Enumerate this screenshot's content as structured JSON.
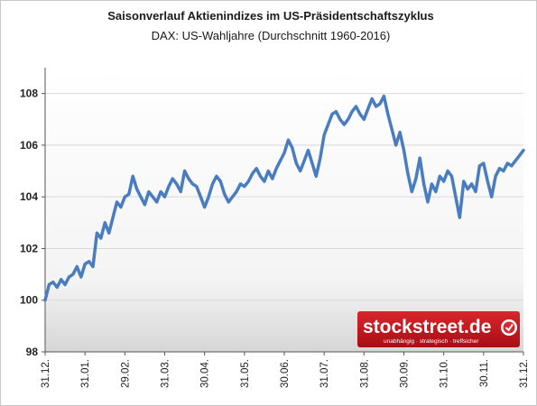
{
  "chart_data": {
    "type": "line",
    "title": "Saisonverlauf Aktienindizes im US-Präsidentschaftszyklus",
    "subtitle": "DAX: US-Wahljahre (Durchschnitt 1960-2016)",
    "xlabel": "",
    "ylabel": "",
    "ylim": [
      98,
      109
    ],
    "yticks": [
      98,
      100,
      102,
      104,
      106,
      108
    ],
    "grid": true,
    "xtick_labels": [
      "31.12.",
      "31.01.",
      "29.02.",
      "31.03.",
      "30.04.",
      "31.05.",
      "30.06.",
      "31.07.",
      "31.08.",
      "30.09.",
      "31.10.",
      "30.11.",
      "31.12."
    ],
    "series_color": "#4a7dbf",
    "series": [
      {
        "name": "",
        "x": [
          0,
          0.1,
          0.2,
          0.3,
          0.4,
          0.5,
          0.6,
          0.7,
          0.8,
          0.9,
          1.0,
          1.1,
          1.2,
          1.3,
          1.4,
          1.5,
          1.6,
          1.7,
          1.8,
          1.9,
          2.0,
          2.1,
          2.2,
          2.3,
          2.4,
          2.5,
          2.6,
          2.7,
          2.8,
          2.9,
          3.0,
          3.1,
          3.2,
          3.3,
          3.4,
          3.5,
          3.6,
          3.7,
          3.8,
          3.9,
          4.0,
          4.1,
          4.2,
          4.3,
          4.4,
          4.5,
          4.6,
          4.7,
          4.8,
          4.9,
          5.0,
          5.1,
          5.2,
          5.3,
          5.4,
          5.5,
          5.6,
          5.7,
          5.8,
          5.9,
          6.0,
          6.1,
          6.2,
          6.3,
          6.4,
          6.5,
          6.6,
          6.7,
          6.8,
          6.9,
          7.0,
          7.1,
          7.2,
          7.3,
          7.4,
          7.5,
          7.6,
          7.7,
          7.8,
          7.9,
          8.0,
          8.1,
          8.2,
          8.3,
          8.4,
          8.5,
          8.6,
          8.7,
          8.8,
          8.9,
          9.0,
          9.1,
          9.2,
          9.3,
          9.4,
          9.5,
          9.6,
          9.7,
          9.8,
          9.9,
          10.0,
          10.1,
          10.2,
          10.3,
          10.4,
          10.5,
          10.6,
          10.7,
          10.8,
          10.9,
          11.0,
          11.1,
          11.2,
          11.3,
          11.4,
          11.5,
          11.6,
          11.7,
          11.8,
          11.9,
          12.0
        ],
        "values": [
          100.0,
          100.6,
          100.7,
          100.5,
          100.8,
          100.6,
          100.9,
          101.0,
          101.3,
          100.9,
          101.4,
          101.5,
          101.3,
          102.6,
          102.4,
          103.0,
          102.6,
          103.2,
          103.8,
          103.6,
          104.0,
          104.1,
          104.8,
          104.3,
          104.0,
          103.7,
          104.2,
          104.0,
          103.8,
          104.2,
          104.0,
          104.4,
          104.7,
          104.5,
          104.2,
          105.0,
          104.7,
          104.5,
          104.4,
          104.0,
          103.6,
          104.0,
          104.5,
          104.8,
          104.6,
          104.1,
          103.8,
          104.0,
          104.2,
          104.5,
          104.4,
          104.6,
          104.9,
          105.1,
          104.8,
          104.6,
          105.0,
          104.7,
          105.1,
          105.4,
          105.7,
          106.2,
          105.9,
          105.3,
          105.0,
          105.4,
          105.8,
          105.3,
          104.8,
          105.5,
          106.4,
          106.8,
          107.2,
          107.3,
          107.0,
          106.8,
          107.0,
          107.3,
          107.5,
          107.2,
          107.0,
          107.4,
          107.8,
          107.5,
          107.6,
          107.9,
          107.2,
          106.6,
          106.0,
          106.5,
          105.8,
          104.9,
          104.2,
          104.7,
          105.5,
          104.5,
          103.8,
          104.5,
          104.2,
          104.8,
          104.6,
          105.0,
          104.8,
          104.0,
          103.2,
          104.6,
          104.3,
          104.5,
          104.2,
          105.2,
          105.3,
          104.6,
          104.0,
          104.8,
          105.1,
          105.0,
          105.3,
          105.2,
          105.4,
          105.6,
          105.8
        ]
      }
    ]
  },
  "logo": {
    "brand": "stockstreet.de",
    "tagline": "unabhängig · strategisch · treffsicher",
    "brand_color": "#c0121a"
  }
}
